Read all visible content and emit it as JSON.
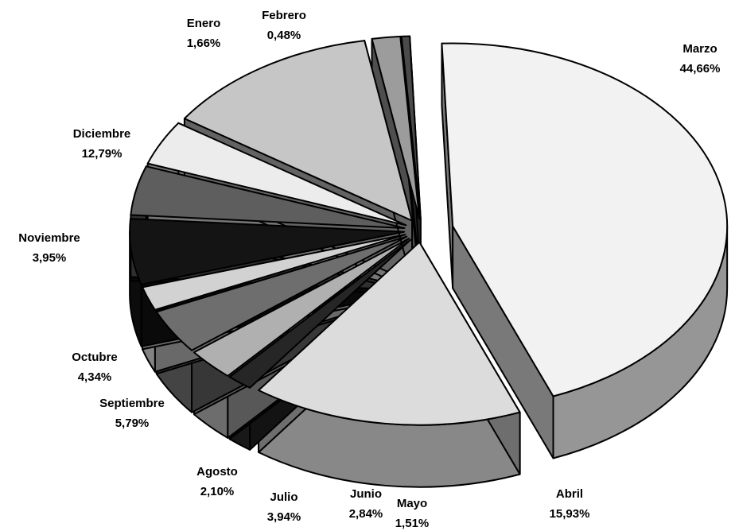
{
  "chart_data": {
    "type": "pie",
    "style": "3d-exploded",
    "title": "",
    "legend": "none",
    "slices": [
      {
        "label": "Enero",
        "value": 1.66,
        "value_label": "1,66%",
        "color": "#9c9c9c"
      },
      {
        "label": "Febrero",
        "value": 0.48,
        "value_label": "0,48%",
        "color": "#4a4a4a"
      },
      {
        "label": "Marzo",
        "value": 44.66,
        "value_label": "44,66%",
        "color": "#f2f2f2"
      },
      {
        "label": "Abril",
        "value": 15.93,
        "value_label": "15,93%",
        "color": "#dcdcdc"
      },
      {
        "label": "Mayo",
        "value": 1.51,
        "value_label": "1,51%",
        "color": "#262626"
      },
      {
        "label": "Junio",
        "value": 2.84,
        "value_label": "2,84%",
        "color": "#b0b0b0"
      },
      {
        "label": "Julio",
        "value": 3.94,
        "value_label": "3,94%",
        "color": "#6e6e6e"
      },
      {
        "label": "Agosto",
        "value": 2.1,
        "value_label": "2,10%",
        "color": "#d2d2d2"
      },
      {
        "label": "Septiembre",
        "value": 5.79,
        "value_label": "5,79%",
        "color": "#141414"
      },
      {
        "label": "Octubre",
        "value": 4.34,
        "value_label": "4,34%",
        "color": "#5e5e5e"
      },
      {
        "label": "Noviembre",
        "value": 3.95,
        "value_label": "3,95%",
        "color": "#ececec"
      },
      {
        "label": "Diciembre",
        "value": 12.79,
        "value_label": "12,79%",
        "color": "#c6c6c6"
      }
    ]
  }
}
